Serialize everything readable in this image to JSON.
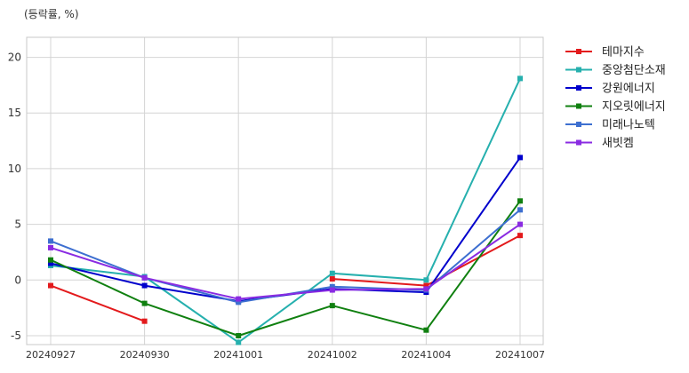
{
  "chart_data": {
    "type": "line",
    "unit_label": "(등락률, %)",
    "categories": [
      "20240927",
      "20240930",
      "20241001",
      "20241002",
      "20241004",
      "20241007"
    ],
    "ylim": [
      -5.8,
      21.8
    ],
    "y_ticks": [
      -5,
      0,
      5,
      10,
      15,
      20
    ],
    "grid": true,
    "legend_position": "right-outside-top",
    "series": [
      {
        "name": "테마지수",
        "color": "#e31a1c",
        "values": [
          -0.5,
          -3.7,
          null,
          0.1,
          -0.5,
          4.0
        ]
      },
      {
        "name": "중앙첨단소재",
        "color": "#26b0ae",
        "values": [
          1.3,
          0.3,
          -5.6,
          0.6,
          0.0,
          18.1
        ]
      },
      {
        "name": "강원에너지",
        "color": "#0000cc",
        "values": [
          1.5,
          -0.5,
          -1.9,
          -0.8,
          -1.1,
          11.0
        ]
      },
      {
        "name": "지오릿에너지",
        "color": "#108010",
        "values": [
          1.8,
          -2.1,
          -5.0,
          -2.3,
          -4.5,
          7.1
        ]
      },
      {
        "name": "미래나노텍",
        "color": "#3d6fd0",
        "values": [
          3.5,
          0.2,
          -2.0,
          -0.6,
          -0.9,
          6.3
        ]
      },
      {
        "name": "새빗켐",
        "color": "#8a2be2",
        "values": [
          2.9,
          0.2,
          -1.7,
          -0.9,
          -0.8,
          5.0
        ]
      }
    ]
  }
}
